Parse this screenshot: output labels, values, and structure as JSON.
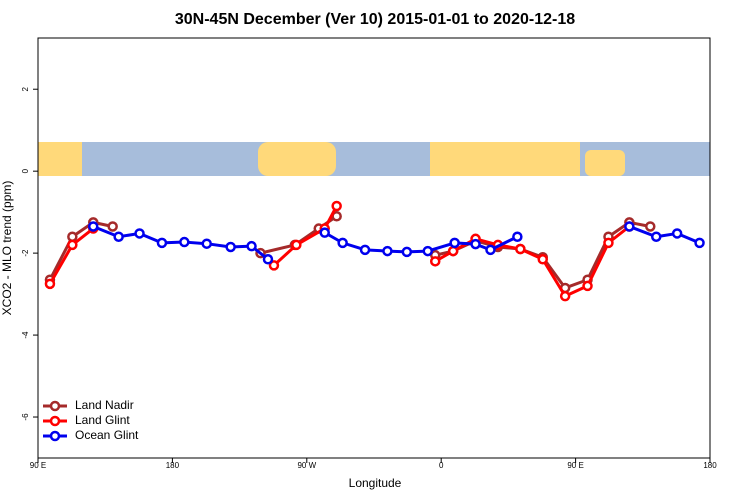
{
  "chart_data": {
    "type": "line",
    "title": "30N-45N December (Ver 10)   2015-01-01 to 2020-12-18",
    "x_label": "Longitude",
    "y_label": "XCO2 - MLO trend (ppm)",
    "xlim": [
      90,
      540
    ],
    "ylim": [
      -7,
      3.25
    ],
    "xticks": [
      {
        "value": 90,
        "label": "90 E"
      },
      180,
      {
        "value": 270,
        "label": "90 W"
      },
      {
        "value": 360,
        "label": "0"
      },
      {
        "value": 450,
        "label": "90 E"
      },
      {
        "value": 540,
        "label": "180"
      }
    ],
    "yticks": [
      -6,
      -4,
      -2,
      0,
      2
    ],
    "legend": "bottom-left",
    "series": [
      {
        "name": "Land Nadir",
        "color": "#a52a2a",
        "x": [
          98,
          113,
          127,
          140,
          null,
          239,
          262,
          278,
          290,
          null,
          356,
          368,
          383,
          398,
          413,
          428,
          443,
          458,
          472,
          486,
          500
        ],
        "values": [
          -2.65,
          -1.6,
          -1.25,
          -1.35,
          null,
          -2.0,
          -1.8,
          -1.4,
          -1.1,
          null,
          -2.05,
          -1.95,
          -1.7,
          -1.85,
          -1.9,
          -2.1,
          -2.85,
          -2.65,
          -1.6,
          -1.25,
          -1.35
        ]
      },
      {
        "name": "Land Glint",
        "color": "#ff0000",
        "x": [
          98,
          113,
          127,
          null,
          248,
          263,
          282,
          290,
          null,
          356,
          368,
          383,
          398,
          413,
          428,
          443,
          458,
          472,
          486
        ],
        "values": [
          -2.75,
          -1.8,
          -1.4,
          null,
          -2.3,
          -1.8,
          -1.4,
          -0.85,
          null,
          -2.2,
          -1.95,
          -1.65,
          -1.8,
          -1.9,
          -2.15,
          -3.05,
          -2.8,
          -1.75,
          -1.35
        ]
      },
      {
        "name": "Ocean Glint",
        "color": "#0000ee",
        "x": [
          127,
          144,
          158,
          173,
          188,
          203,
          219,
          233,
          244,
          null,
          282,
          294,
          309,
          324,
          337,
          351,
          369,
          383,
          393,
          411,
          null,
          486,
          504,
          518,
          533
        ],
        "values": [
          -1.35,
          -1.6,
          -1.52,
          -1.75,
          -1.73,
          -1.77,
          -1.85,
          -1.83,
          -2.15,
          null,
          -1.5,
          -1.75,
          -1.92,
          -1.95,
          -1.97,
          -1.95,
          -1.75,
          -1.78,
          -1.92,
          -1.6,
          null,
          -1.35,
          -1.6,
          -1.52,
          -1.75
        ]
      }
    ]
  }
}
